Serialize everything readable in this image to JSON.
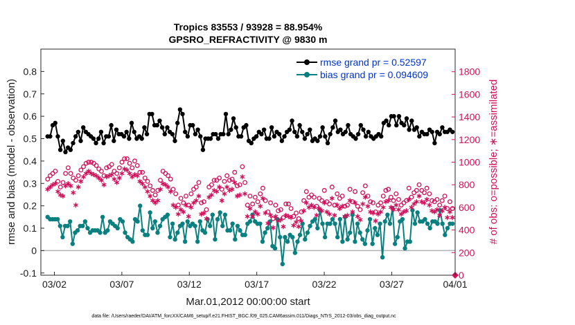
{
  "chart_data": {
    "type": "line",
    "title": "Tropics 83553 / 93928 = 88.954%",
    "subtitle": "GPSRO_REFRACTIVITY @ 9830 m",
    "xlabel": "Mar.01,2012 00:00:00 start",
    "ylabel": "rmse and bias (model - observation)",
    "y2label": "# of obs: o=possible; ∗=assimilated",
    "footnote": "data file: /Users/raeder/DAI/ATM_forcXX/CAM6_setup/f.e21.FHIST_BGC.f09_025.CAM6assim.011/Diags_NTrS_2012-03/obs_diag_output.nc",
    "xlim": [
      0.5,
      31.2
    ],
    "ylim": [
      -0.11,
      0.9
    ],
    "y2lim": [
      0,
      2000
    ],
    "x_tick_values": [
      1.5,
      6.5,
      11.5,
      16.5,
      21.5,
      26.5,
      31.5
    ],
    "x_tick_labels": [
      "03/02",
      "03/07",
      "03/12",
      "03/17",
      "03/22",
      "03/27",
      "04/01"
    ],
    "y_tick_values": [
      -0.1,
      0,
      0.1,
      0.2,
      0.3,
      0.4,
      0.5,
      0.6,
      0.7,
      0.8
    ],
    "y_tick_labels": [
      "-0.1",
      "0",
      "0.1",
      "0.2",
      "0.3",
      "0.4",
      "0.5",
      "0.6",
      "0.7",
      "0.8"
    ],
    "y2_tick_values": [
      0,
      200,
      400,
      600,
      800,
      1000,
      1200,
      1400,
      1600,
      1800
    ],
    "y2_tick_labels": [
      "0",
      "200",
      "400",
      "600",
      "800",
      "1000",
      "1200",
      "1400",
      "1600",
      "1800"
    ],
    "zero_line": 0,
    "legend_position": "top-right",
    "series": [
      {
        "name": "rmse grand pr = 0.52597",
        "axis": "left",
        "color": "#000000",
        "marker": "filled-circle",
        "values": [
          0.51,
          0.51,
          0.56,
          0.57,
          0.51,
          0.45,
          0.49,
          0.44,
          0.46,
          0.45,
          0.48,
          0.51,
          0.53,
          0.49,
          0.55,
          0.53,
          0.52,
          0.51,
          0.5,
          0.48,
          0.5,
          0.53,
          0.48,
          0.51,
          0.51,
          0.56,
          0.49,
          0.54,
          0.52,
          0.52,
          0.51,
          0.53,
          0.5,
          0.57,
          0.53,
          0.5,
          0.51,
          0.5,
          0.55,
          0.52,
          0.61,
          0.61,
          0.56,
          0.56,
          0.58,
          0.55,
          0.52,
          0.55,
          0.53,
          0.52,
          0.49,
          0.57,
          0.63,
          0.61,
          0.53,
          0.51,
          0.56,
          0.56,
          0.52,
          0.54,
          0.51,
          0.45,
          0.5,
          0.5,
          0.5,
          0.52,
          0.52,
          0.5,
          0.52,
          0.52,
          0.61,
          0.52,
          0.54,
          0.59,
          0.55,
          0.51,
          0.51,
          0.55,
          0.56,
          0.49,
          0.48,
          0.5,
          0.51,
          0.53,
          0.52,
          0.54,
          0.5,
          0.5,
          0.55,
          0.51,
          0.53,
          0.52,
          0.49,
          0.51,
          0.53,
          0.54,
          0.58,
          0.53,
          0.51,
          0.56,
          0.53,
          0.5,
          0.52,
          0.54,
          0.49,
          0.5,
          0.49,
          0.51,
          0.55,
          0.51,
          0.48,
          0.52,
          0.55,
          0.58,
          0.53,
          0.54,
          0.52,
          0.53,
          0.56,
          0.52,
          0.51,
          0.5,
          0.52,
          0.56,
          0.54,
          0.51,
          0.53,
          0.51,
          0.5,
          0.51,
          0.52,
          0.51,
          0.57,
          0.58,
          0.56,
          0.6,
          0.6,
          0.56,
          0.6,
          0.57,
          0.56,
          0.59,
          0.54,
          0.58,
          0.54,
          0.55,
          0.51,
          0.53,
          0.52,
          0.52,
          0.54,
          0.53,
          0.48,
          0.53,
          0.52,
          0.55,
          0.53,
          0.53,
          0.54,
          0.53
        ]
      },
      {
        "name": "bias grand pr = 0.094609",
        "axis": "left",
        "color": "#0a7f7f",
        "marker": "filled-circle",
        "values": [
          0.15,
          0.14,
          0.14,
          0.14,
          0.14,
          0.11,
          0.06,
          0.11,
          0.11,
          0.13,
          0.03,
          0.08,
          0.09,
          0.11,
          0.11,
          0.13,
          0.1,
          0.08,
          0.09,
          0.09,
          0.09,
          0.08,
          0.15,
          0.08,
          0.09,
          0.13,
          0.12,
          0.11,
          0.1,
          0.14,
          0.13,
          0.08,
          0.06,
          0.05,
          0.04,
          0.14,
          0.13,
          0.2,
          0.09,
          0.07,
          0.07,
          0.17,
          0.1,
          0.13,
          0.08,
          0.11,
          0.14,
          0.15,
          0.16,
          0.06,
          0.12,
          0.05,
          0.08,
          0.11,
          0.12,
          0.04,
          0.13,
          0.11,
          0.12,
          0.11,
          0.04,
          0.13,
          0.09,
          0.08,
          0.14,
          0.11,
          0.16,
          0.05,
          0.14,
          0.17,
          0.11,
          0.16,
          0.09,
          0.09,
          0.12,
          0.05,
          0.11,
          0.09,
          0.07,
          0.07,
          0.12,
          0.13,
          0.16,
          0.13,
          0.12,
          0.12,
          0.04,
          0.08,
          0.1,
          0.13,
          0.02,
          0.01,
          0.14,
          0.06,
          -0.06,
          0.06,
          0.04,
          0.07,
          0.06,
          -0.01,
          0.04,
          0.07,
          0.12,
          0.05,
          0.08,
          0.11,
          0.13,
          0.14,
          0.1,
          0.18,
          0.12,
          0.06,
          0.12,
          0.12,
          0.14,
          0.12,
          0.06,
          0.14,
          0.04,
          0.15,
          0.05,
          0.08,
          0.16,
          0.04,
          0.12,
          0.08,
          0.05,
          0.03,
          0.09,
          0.14,
          0.03,
          0.1,
          0.07,
          0.12,
          -0.03,
          0.13,
          0.16,
          0.12,
          0.19,
          0.03,
          0.06,
          0.13,
          0.14,
          0.01,
          0.04,
          0.04,
          0.18,
          0.12,
          0.17,
          0.13,
          0.13,
          0.14,
          0.12,
          0.1,
          0.13,
          0.13,
          0.12,
          0.18,
          0.12,
          0.07,
          0.1,
          0.12,
          0.12
        ]
      },
      {
        "name": "obs possible",
        "axis": "right",
        "color": "#d0105a",
        "marker": "open-circle",
        "values": [
          850,
          880,
          900,
          920,
          830,
          780,
          820,
          900,
          950,
          900,
          860,
          840,
          880,
          930,
          960,
          990,
          1000,
          1000,
          990,
          970,
          940,
          920,
          880,
          950,
          960,
          980,
          920,
          900,
          950,
          1000,
          1030,
          1030,
          990,
          950,
          1010,
          970,
          910,
          910,
          860,
          830,
          790,
          750,
          710,
          750,
          840,
          920,
          900,
          880,
          850,
          760,
          720,
          620,
          680,
          640,
          700,
          620,
          720,
          760,
          780,
          820,
          640,
          650,
          580,
          780,
          800,
          840,
          840,
          860,
          760,
          830,
          880,
          840,
          850,
          910,
          790,
          800,
          960,
          820,
          620,
          700,
          630,
          690,
          650,
          720,
          770,
          660,
          560,
          640,
          500,
          620,
          570,
          580,
          510,
          630,
          630,
          590,
          520,
          550,
          500,
          560,
          660,
          740,
          690,
          710,
          690,
          610,
          680,
          660,
          750,
          650,
          630,
          780,
          620,
          720,
          680,
          700,
          610,
          620,
          760,
          650,
          740,
          610,
          580,
          730,
          790,
          700,
          650,
          640,
          560,
          620,
          640,
          700,
          750,
          760,
          690,
          660,
          720,
          670,
          620,
          640,
          660,
          770,
          690,
          730,
          750,
          800,
          750,
          730,
          770,
          720,
          660,
          650,
          670,
          620,
          660,
          700,
          590,
          650,
          590
        ]
      },
      {
        "name": "obs assimilated",
        "axis": "right",
        "color": "#d0105a",
        "marker": "asterisk",
        "values": [
          760,
          780,
          800,
          810,
          740,
          710,
          700,
          790,
          810,
          790,
          730,
          620,
          780,
          830,
          870,
          900,
          920,
          900,
          890,
          880,
          860,
          840,
          800,
          870,
          880,
          890,
          850,
          820,
          860,
          900,
          940,
          930,
          900,
          870,
          890,
          880,
          830,
          810,
          780,
          740,
          700,
          660,
          640,
          660,
          760,
          810,
          800,
          780,
          740,
          620,
          600,
          540,
          580,
          560,
          620,
          520,
          600,
          640,
          660,
          700,
          540,
          550,
          500,
          690,
          710,
          750,
          740,
          780,
          660,
          720,
          780,
          750,
          760,
          820,
          700,
          710,
          870,
          720,
          520,
          590,
          520,
          560,
          540,
          610,
          680,
          550,
          460,
          530,
          420,
          520,
          480,
          490,
          430,
          530,
          520,
          510,
          440,
          470,
          430,
          480,
          570,
          640,
          600,
          620,
          600,
          530,
          590,
          570,
          640,
          560,
          540,
          680,
          530,
          620,
          590,
          610,
          520,
          530,
          660,
          560,
          640,
          520,
          490,
          630,
          690,
          610,
          560,
          550,
          480,
          540,
          560,
          600,
          650,
          660,
          600,
          580,
          620,
          580,
          540,
          560,
          570,
          670,
          600,
          630,
          650,
          700,
          650,
          640,
          670,
          620,
          570,
          560,
          580,
          530,
          570,
          600,
          510,
          560,
          510
        ]
      }
    ]
  }
}
